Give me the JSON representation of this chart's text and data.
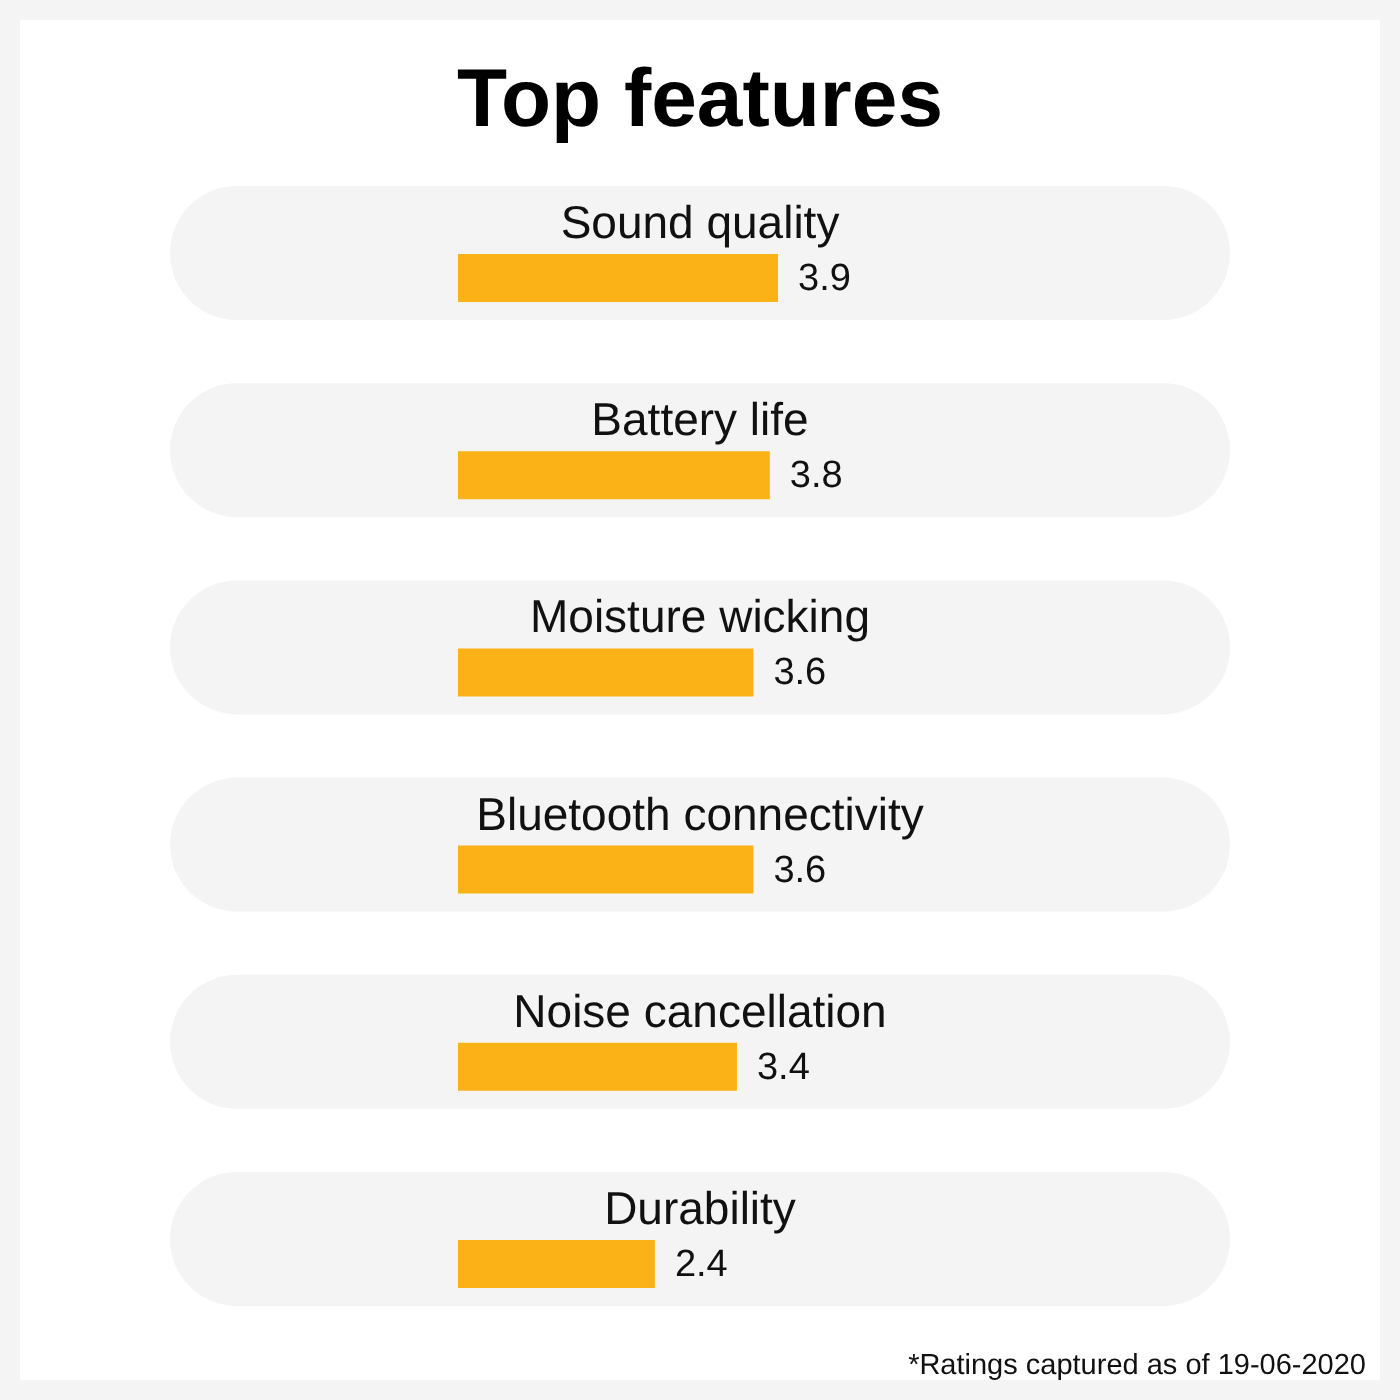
{
  "chart_data": {
    "type": "bar",
    "title": "Top features",
    "orientation": "horizontal",
    "categories": [
      "Sound quality",
      "Battery life",
      "Moisture wicking",
      "Bluetooth connectivity",
      "Noise cancellation",
      "Durability"
    ],
    "values": [
      3.9,
      3.8,
      3.6,
      3.6,
      3.4,
      2.4
    ],
    "color": "#fbb217",
    "data_labels": true,
    "tick_labels": "y",
    "annotations": [
      "*Ratings captured as of 19-06-2020"
    ]
  }
}
